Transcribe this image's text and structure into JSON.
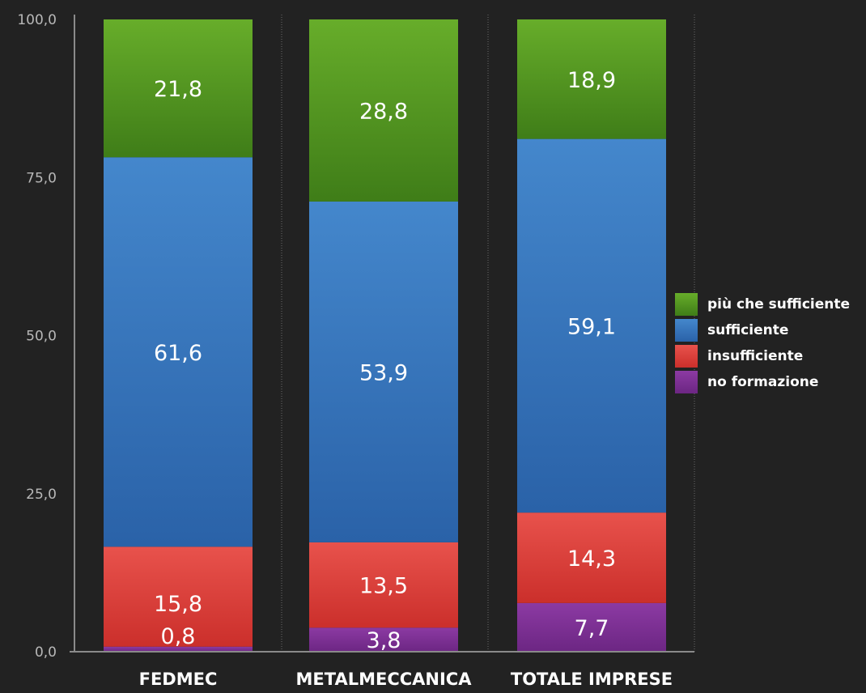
{
  "chart_data": {
    "type": "bar",
    "stacked": true,
    "categories": [
      "FEDMEC",
      "METALMECCANICA",
      "TOTALE IMPRESE"
    ],
    "series": [
      {
        "name": "no formazione",
        "values": [
          0.8,
          3.8,
          7.7
        ],
        "labels": [
          "0,8",
          "3,8",
          "7,7"
        ],
        "color": "#7a2e92"
      },
      {
        "name": "insufficiente",
        "values": [
          15.8,
          13.5,
          14.3
        ],
        "labels": [
          "15,8",
          "13,5",
          "14,3"
        ],
        "color": "#d83a36"
      },
      {
        "name": "sufficiente",
        "values": [
          61.6,
          53.9,
          59.1
        ],
        "labels": [
          "61,6",
          "53,9",
          "59,1"
        ],
        "color": "#2f6fb5"
      },
      {
        "name": "più che sufficiente",
        "values": [
          21.8,
          28.8,
          18.9
        ],
        "labels": [
          "21,8",
          "28,8",
          "18,9"
        ],
        "color": "#4f921f"
      }
    ],
    "y_ticks": [
      "0,0",
      "25,0",
      "50,0",
      "75,0",
      "100,0"
    ],
    "y_tick_values": [
      0,
      25,
      50,
      75,
      100
    ],
    "ylim": [
      0,
      100
    ],
    "legend_position": "right",
    "grid": false
  },
  "legend": {
    "items": [
      {
        "label": "più che sufficiente",
        "color": "#4f921f"
      },
      {
        "label": "sufficiente",
        "color": "#2f6fb5"
      },
      {
        "label": "insufficiente",
        "color": "#d83a36"
      },
      {
        "label": "no formazione",
        "color": "#7a2e92"
      }
    ]
  }
}
